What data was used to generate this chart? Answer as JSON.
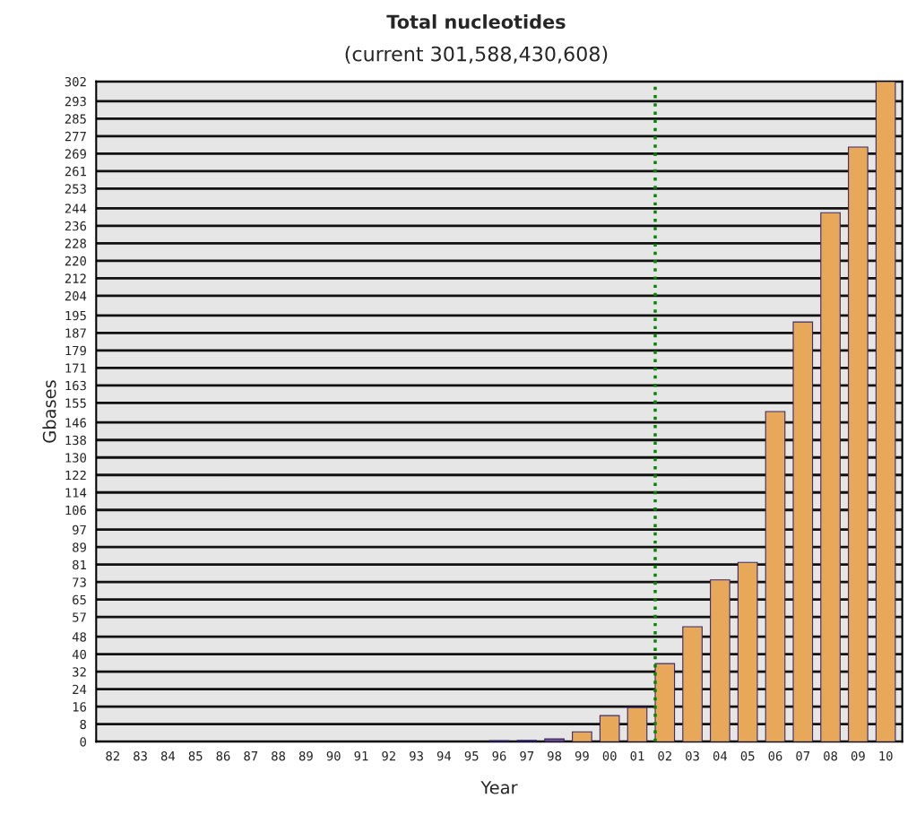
{
  "chart_data": {
    "type": "bar",
    "title": "Total nucleotides",
    "subtitle": "(current 301,588,430,608)",
    "xlabel": "Year",
    "ylabel": "Gbases",
    "categories": [
      "82",
      "83",
      "84",
      "85",
      "86",
      "87",
      "88",
      "89",
      "90",
      "91",
      "92",
      "93",
      "94",
      "95",
      "96",
      "97",
      "98",
      "99",
      "00",
      "01",
      "02",
      "03",
      "04",
      "05",
      "06",
      "07",
      "08",
      "09",
      "10"
    ],
    "values": [
      null,
      null,
      null,
      null,
      null,
      null,
      null,
      null,
      null,
      null,
      null,
      null,
      null,
      null,
      0.5,
      0.6,
      1.3,
      4.5,
      11.9,
      15.6,
      35.7,
      52.6,
      74,
      82,
      151,
      192,
      242,
      272,
      302
    ],
    "colors": [
      null,
      null,
      null,
      null,
      null,
      null,
      null,
      null,
      null,
      null,
      null,
      null,
      null,
      null,
      "#1c1c9c",
      "#1c1c9c",
      "#6a4a8a",
      "#e8a85a",
      "#e8a85a",
      "#e8a85a",
      "#e8a85a",
      "#e8a85a",
      "#e8a85a",
      "#e8a85a",
      "#e8a85a",
      "#e8a85a",
      "#e8a85a",
      "#e8a85a",
      "#e8a85a"
    ],
    "ylim": [
      0,
      302
    ],
    "yticks": [
      0,
      8,
      16,
      24,
      32,
      40,
      48,
      57,
      65,
      73,
      81,
      89,
      97,
      106,
      114,
      122,
      130,
      138,
      146,
      155,
      163,
      171,
      179,
      187,
      195,
      204,
      212,
      220,
      228,
      236,
      244,
      253,
      261,
      269,
      277,
      285,
      293,
      302
    ],
    "grid": "y",
    "ref_lines": [
      {
        "axis": "x",
        "value": "02",
        "color": "#008800",
        "line_style": "dotted"
      }
    ]
  }
}
